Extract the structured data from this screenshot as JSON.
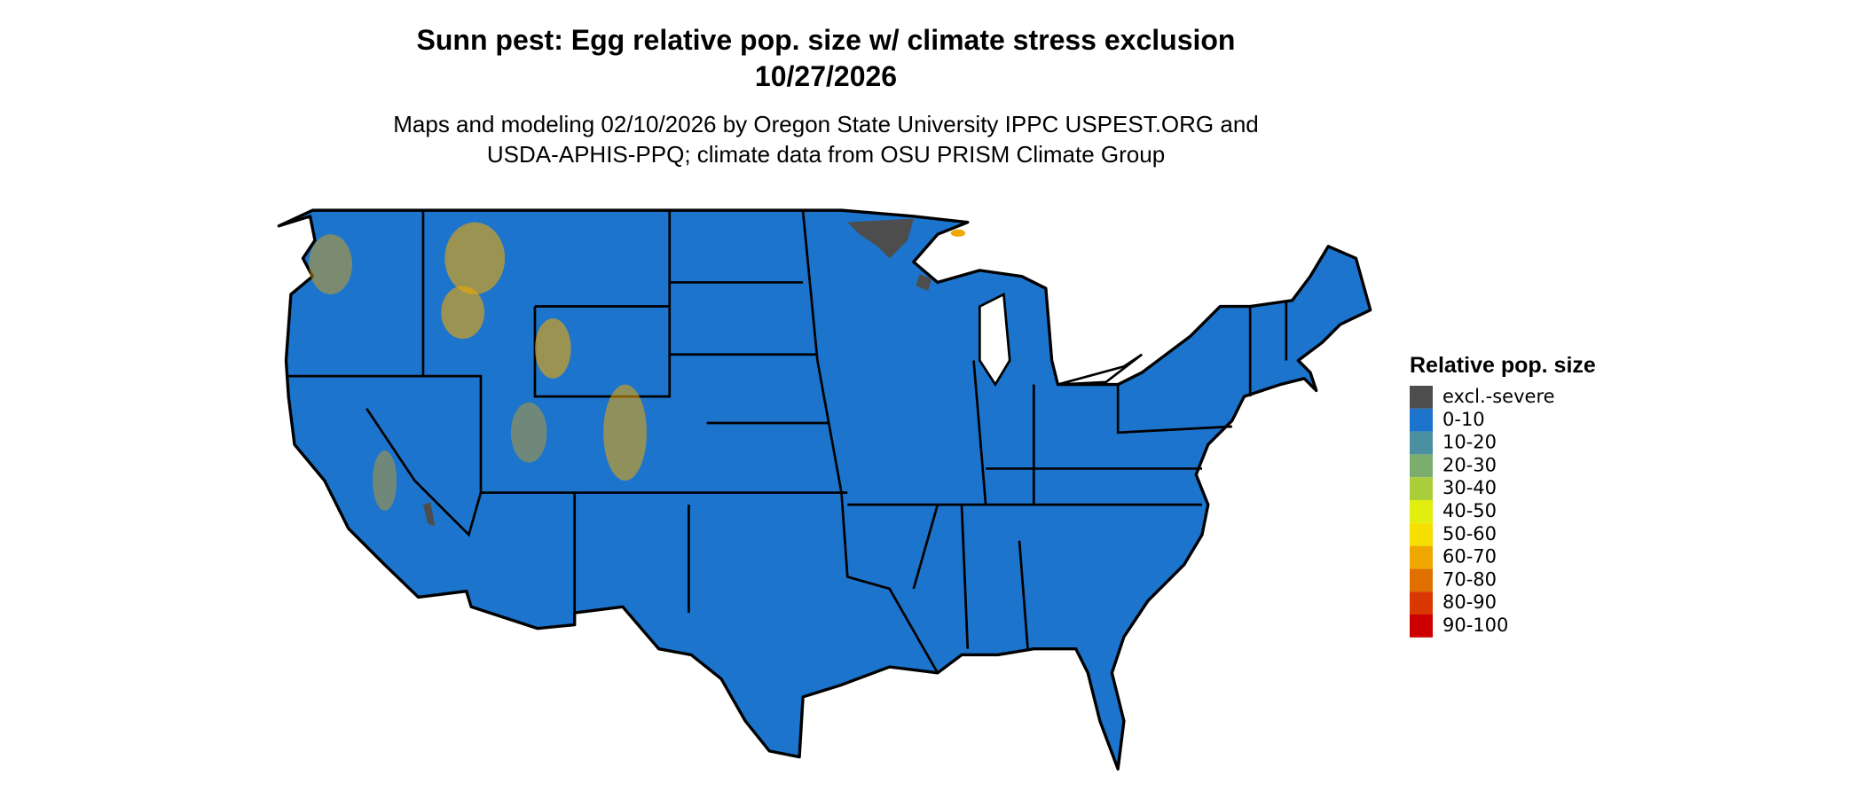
{
  "title": [
    "Sunn pest: Egg relative pop. size w/ climate stress exclusion",
    "10/27/2026"
  ],
  "subtitle": [
    "Maps and modeling 02/10/2026 by Oregon State University IPPC USPEST.ORG and",
    "USDA-APHIS-PPQ; climate data from OSU PRISM Climate Group"
  ],
  "legend": {
    "title": "Relative pop. size",
    "items": [
      {
        "label": "excl.-severe",
        "color": "#4d4d4d"
      },
      {
        "label": "0-10",
        "color": "#1c74cc"
      },
      {
        "label": "10-20",
        "color": "#4a8fa0"
      },
      {
        "label": "20-30",
        "color": "#7aad6e"
      },
      {
        "label": "30-40",
        "color": "#aacd3c"
      },
      {
        "label": "40-50",
        "color": "#e0ee10"
      },
      {
        "label": "50-60",
        "color": "#f5e000"
      },
      {
        "label": "60-70",
        "color": "#f0a800"
      },
      {
        "label": "70-80",
        "color": "#e07000"
      },
      {
        "label": "80-90",
        "color": "#d83800"
      },
      {
        "label": "90-100",
        "color": "#cc0000"
      }
    ]
  }
}
